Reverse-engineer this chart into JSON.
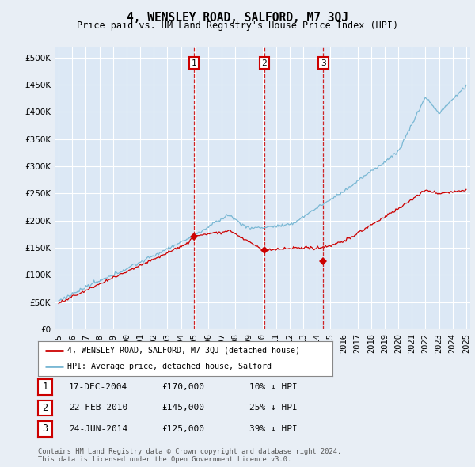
{
  "title": "4, WENSLEY ROAD, SALFORD, M7 3QJ",
  "subtitle": "Price paid vs. HM Land Registry's House Price Index (HPI)",
  "background_color": "#e8eef5",
  "plot_bg_color": "#dce8f5",
  "ylim": [
    0,
    520000
  ],
  "yticks": [
    0,
    50000,
    100000,
    150000,
    200000,
    250000,
    300000,
    350000,
    400000,
    450000,
    500000
  ],
  "hpi_color": "#7ab8d4",
  "price_color": "#cc0000",
  "vline_color": "#cc0000",
  "purchases": [
    {
      "year": 2004.96,
      "price": 170000,
      "label": "1"
    },
    {
      "year": 2010.13,
      "price": 145000,
      "label": "2"
    },
    {
      "year": 2014.48,
      "price": 125000,
      "label": "3"
    }
  ],
  "purchase_notes": [
    {
      "label": "1",
      "date": "17-DEC-2004",
      "price": "£170,000",
      "hpi": "10% ↓ HPI"
    },
    {
      "label": "2",
      "date": "22-FEB-2010",
      "price": "£145,000",
      "hpi": "25% ↓ HPI"
    },
    {
      "label": "3",
      "date": "24-JUN-2014",
      "price": "£125,000",
      "hpi": "39% ↓ HPI"
    }
  ],
  "legend_entries": [
    "4, WENSLEY ROAD, SALFORD, M7 3QJ (detached house)",
    "HPI: Average price, detached house, Salford"
  ],
  "footer": "Contains HM Land Registry data © Crown copyright and database right 2024.\nThis data is licensed under the Open Government Licence v3.0.",
  "x_start_year": 1995,
  "x_end_year": 2025
}
